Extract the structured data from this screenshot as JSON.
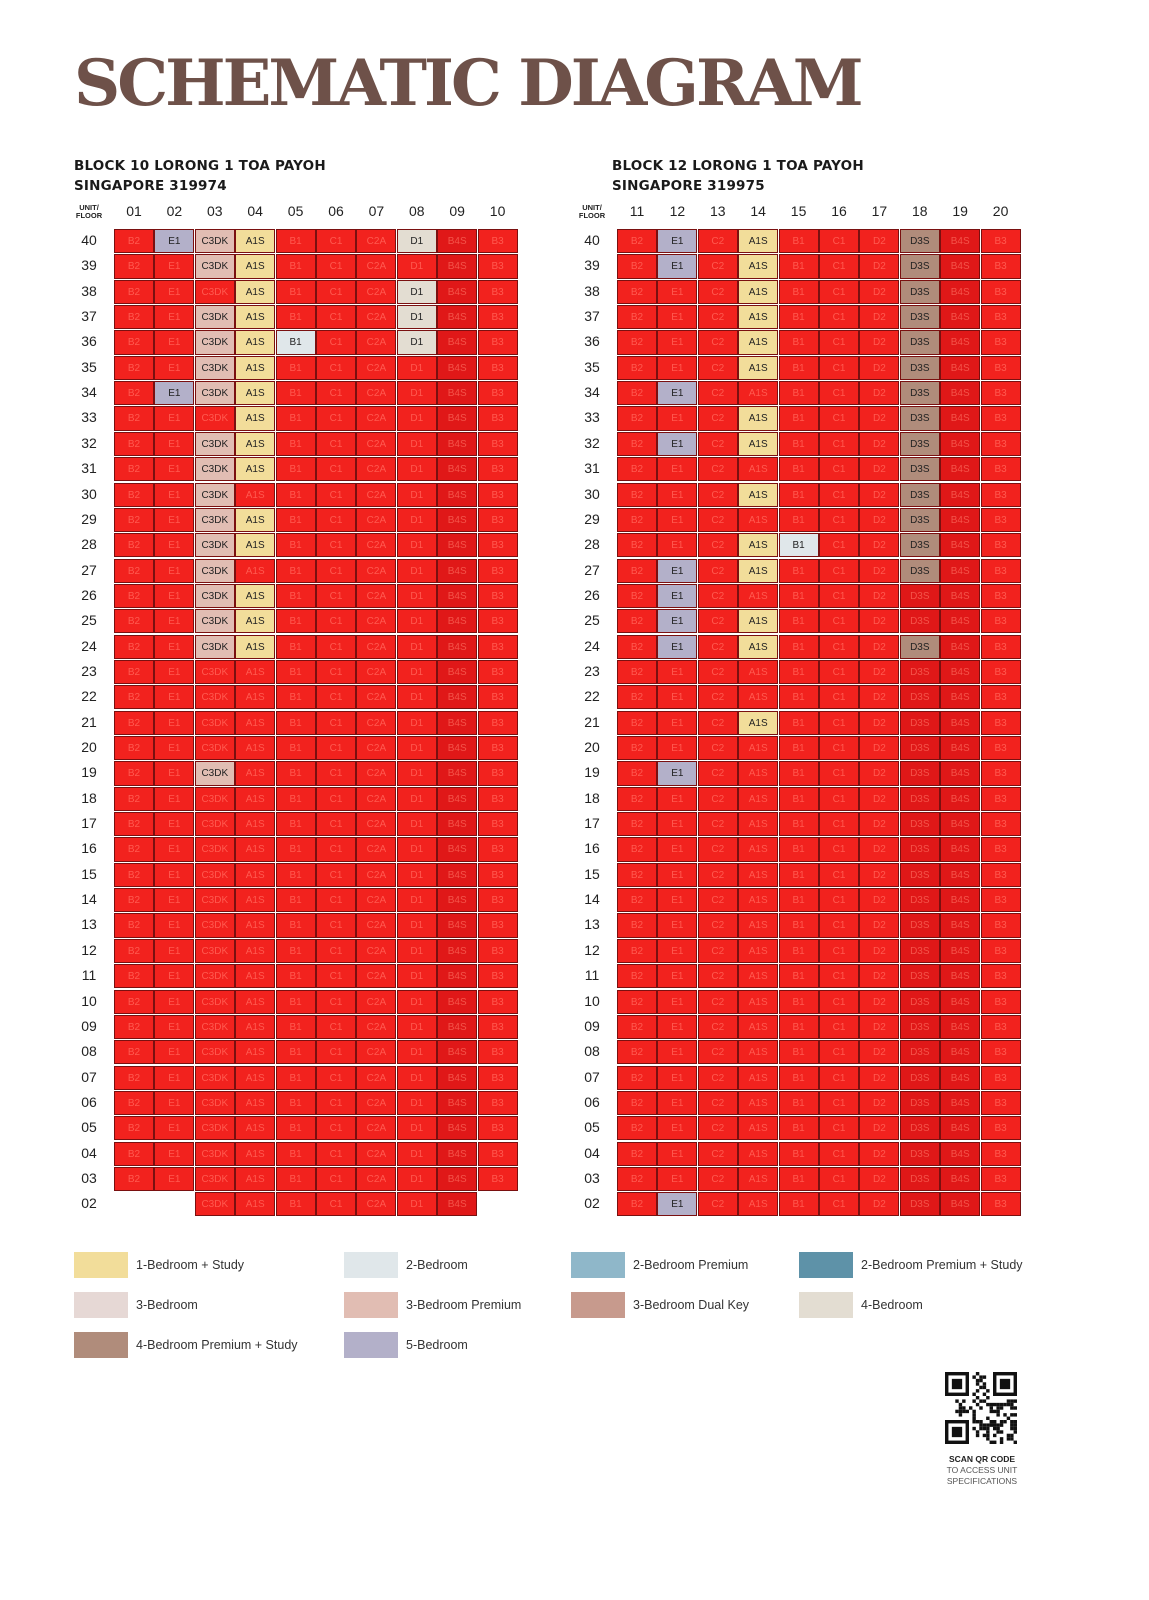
{
  "title": "SCHEMATIC DIAGRAM",
  "unit_floor_label": "UNIT/\nFLOOR",
  "colors": {
    "sold": "#f2221e",
    "1-Bedroom + Study": "#f2dd9a",
    "2-Bedroom": "#e0e7ea",
    "2-Bedroom Premium": "#8fb7c9",
    "2-Bedroom Premium + Study": "#5e92a8",
    "3-Bedroom": "#e6d8d5",
    "3-Bedroom Premium": "#e1bdb3",
    "3-Bedroom Dual Key": "#c79a8d",
    "4-Bedroom": "#e3ddd2",
    "4-Bedroom Premium + Study": "#b08c7b",
    "5-Bedroom": "#b3b0c9"
  },
  "legend": [
    {
      "label": "1-Bedroom + Study"
    },
    {
      "label": "2-Bedroom"
    },
    {
      "label": "2-Bedroom Premium"
    },
    {
      "label": "2-Bedroom Premium + Study"
    },
    {
      "label": "3-Bedroom"
    },
    {
      "label": "3-Bedroom Premium"
    },
    {
      "label": "3-Bedroom Dual Key"
    },
    {
      "label": "4-Bedroom"
    },
    {
      "label": "4-Bedroom Premium + Study"
    },
    {
      "label": "5-Bedroom"
    }
  ],
  "qr": {
    "line1": "SCAN QR CODE",
    "line2": "TO ACCESS UNIT",
    "line3": "SPECIFICATIONS"
  },
  "blocks": [
    {
      "address1": "BLOCK 10 LORONG 1 TOA PAYOH",
      "address2": "SINGAPORE 319974",
      "units": [
        "01",
        "02",
        "03",
        "04",
        "05",
        "06",
        "07",
        "08",
        "09",
        "10"
      ],
      "types": [
        "B2",
        "E1",
        "C3DK",
        "A1S",
        "B1",
        "C1",
        "C2A",
        "D1",
        "B4S",
        "B3"
      ],
      "available": {
        "40": [
          "02",
          "03",
          "04",
          "08"
        ],
        "39": [
          "03",
          "04"
        ],
        "38": [
          "04",
          "08"
        ],
        "37": [
          "03",
          "04",
          "08"
        ],
        "36": [
          "03",
          "04",
          "05",
          "08"
        ],
        "35": [
          "03",
          "04"
        ],
        "34": [
          "02",
          "03",
          "04"
        ],
        "33": [
          "04"
        ],
        "32": [
          "03",
          "04"
        ],
        "31": [
          "03",
          "04"
        ],
        "30": [
          "03"
        ],
        "29": [
          "03",
          "04"
        ],
        "28": [
          "03",
          "04"
        ],
        "27": [
          "03"
        ],
        "26": [
          "03",
          "04"
        ],
        "25": [
          "03",
          "04"
        ],
        "24": [
          "03",
          "04"
        ],
        "19": [
          "03"
        ]
      },
      "lowest_floor_units": [
        "03",
        "04",
        "05",
        "06",
        "07",
        "08",
        "09"
      ]
    },
    {
      "address1": "BLOCK 12 LORONG 1 TOA PAYOH",
      "address2": "SINGAPORE 319975",
      "units": [
        "11",
        "12",
        "13",
        "14",
        "15",
        "16",
        "17",
        "18",
        "19",
        "20"
      ],
      "types": [
        "B2",
        "E1",
        "C2",
        "A1S",
        "B1",
        "C1",
        "D2",
        "D3S",
        "B4S",
        "B3"
      ],
      "available": {
        "40": [
          "12",
          "14",
          "18"
        ],
        "39": [
          "12",
          "14",
          "18"
        ],
        "38": [
          "14",
          "18"
        ],
        "37": [
          "14",
          "18"
        ],
        "36": [
          "14",
          "18"
        ],
        "35": [
          "14",
          "18"
        ],
        "34": [
          "12",
          "18"
        ],
        "33": [
          "14",
          "18"
        ],
        "32": [
          "12",
          "14",
          "18"
        ],
        "31": [
          "18"
        ],
        "30": [
          "14",
          "18"
        ],
        "29": [
          "18"
        ],
        "28": [
          "14",
          "15",
          "18"
        ],
        "27": [
          "12",
          "14",
          "18"
        ],
        "26": [
          "12"
        ],
        "25": [
          "12",
          "14"
        ],
        "24": [
          "12",
          "14",
          "18"
        ],
        "21": [
          "14"
        ],
        "19": [
          "12"
        ],
        "02": [
          "12"
        ]
      },
      "lowest_floor_units": [
        "11",
        "12",
        "13",
        "14",
        "15",
        "16",
        "17",
        "18",
        "19",
        "20"
      ]
    }
  ],
  "type_category": {
    "A1S": "1-Bedroom + Study",
    "B1": "2-Bedroom",
    "E1": "5-Bedroom",
    "C3DK": "3-Bedroom Premium",
    "D1": "4-Bedroom",
    "D3S": "4-Bedroom Premium + Study"
  },
  "floors": [
    "40",
    "39",
    "38",
    "37",
    "36",
    "35",
    "34",
    "33",
    "32",
    "31",
    "30",
    "29",
    "28",
    "27",
    "26",
    "25",
    "24",
    "23",
    "22",
    "21",
    "20",
    "19",
    "18",
    "17",
    "16",
    "15",
    "14",
    "13",
    "12",
    "11",
    "10",
    "09",
    "08",
    "07",
    "06",
    "05",
    "04",
    "03",
    "02"
  ]
}
